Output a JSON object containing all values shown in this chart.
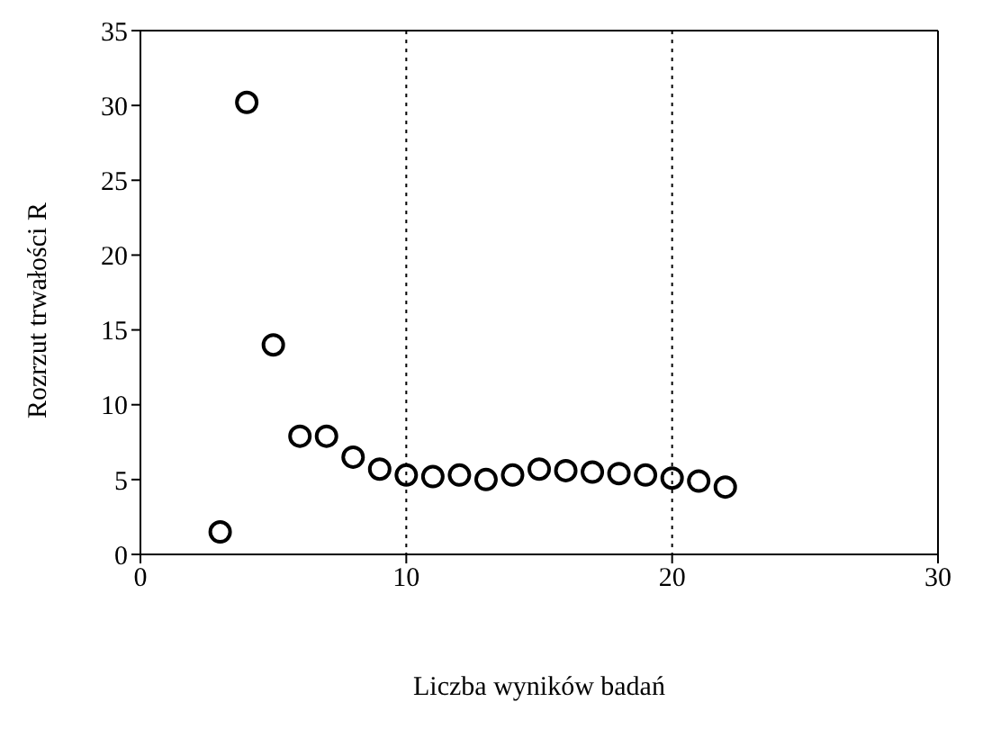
{
  "chart_data": {
    "type": "scatter",
    "xlabel": "Liczba wyników badań",
    "ylabel": "Rozrzut trwałości R",
    "x": [
      3,
      4,
      5,
      6,
      7,
      8,
      9,
      10,
      11,
      12,
      13,
      14,
      15,
      16,
      17,
      18,
      19,
      20,
      21,
      22
    ],
    "series": [
      {
        "color": "#000000",
        "values": [
          1.5,
          30.2,
          14.0,
          7.9,
          7.9,
          6.5,
          5.7,
          5.3,
          5.2,
          5.3,
          5.0,
          5.3,
          5.7,
          5.6,
          5.5,
          5.4,
          5.3,
          5.1,
          4.9,
          4.5
        ]
      }
    ],
    "xlim": [
      0,
      30
    ],
    "xticks": [
      0,
      10,
      20,
      30
    ],
    "ylim": [
      0,
      35
    ],
    "yticks": [
      0,
      5,
      10,
      15,
      20,
      25,
      30,
      35
    ],
    "grid": "x",
    "marker": "circle",
    "legend": false
  }
}
